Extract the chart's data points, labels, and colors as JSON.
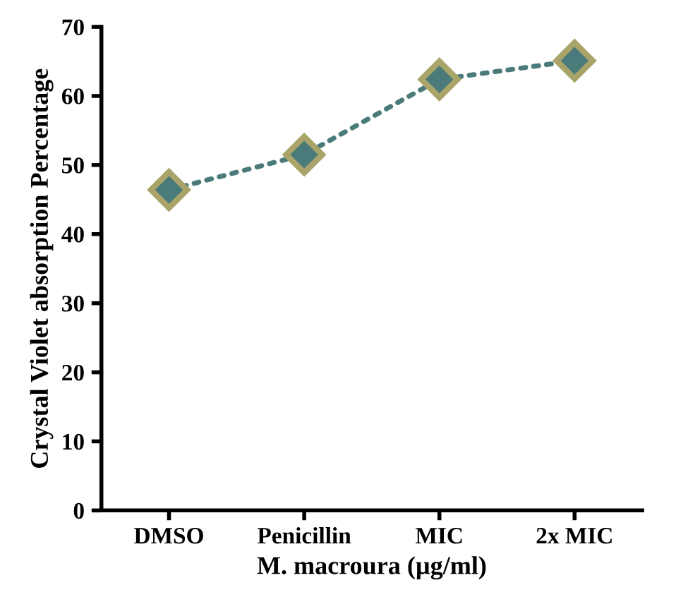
{
  "chart_data": {
    "type": "line",
    "xlabel": "M. macroura (µg/ml)",
    "ylabel": "Crystal Violet absorption Percentage",
    "categories": [
      "DMSO",
      "Penicillin",
      "MIC",
      "2x MIC"
    ],
    "series": [
      {
        "color": "#4a7b7a",
        "values": [
          46.4,
          51.5,
          62.4,
          65.1
        ]
      }
    ],
    "ylim": [
      0,
      70
    ],
    "yticks": [
      0,
      10,
      20,
      30,
      40,
      50,
      60,
      70
    ],
    "marker": "diamond",
    "line_style": "dotted",
    "grid": false,
    "legend": false
  }
}
